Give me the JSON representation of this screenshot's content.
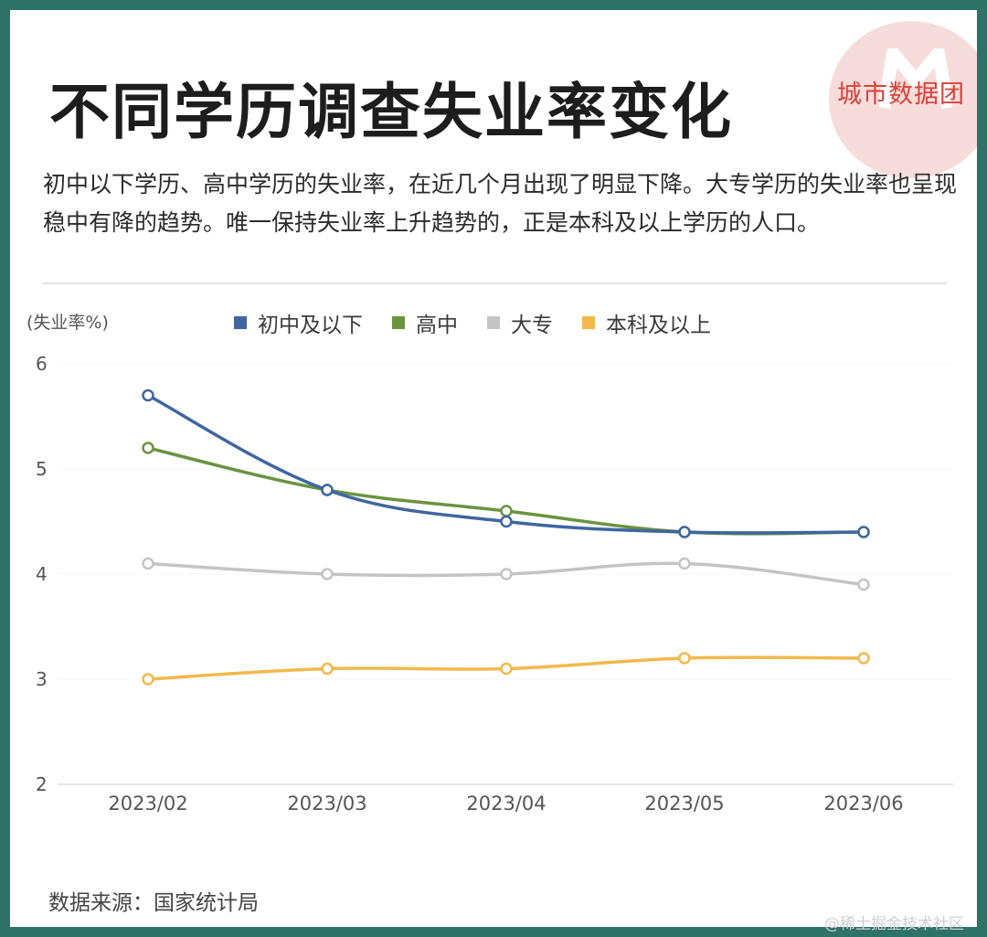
{
  "title": "不同学历调查失业率变化",
  "brand": "城市数据团",
  "description": "初中以下学历、高中学历的失业率，在近几个月出现了明显下降。大专学历的失业率也呈现稳中有降的趋势。唯一保持失业率上升趋势的，正是本科及以上学历的人口。",
  "source": "数据来源：国家统计局",
  "watermark": "@稀土掘金技术社区",
  "colors": {
    "border": "#2e7268",
    "series_junior": "#3f66a0",
    "series_high": "#6a9340",
    "series_college": "#c4c4c4",
    "series_bachelor": "#f2b94b",
    "brand": "#d8423a"
  },
  "chart_data": {
    "type": "line",
    "title": "不同学历调查失业率变化",
    "ylabel": "(失业率%)",
    "xlabel": "",
    "ylim": [
      2,
      6
    ],
    "yticks": [
      "6",
      "5",
      "4",
      "3",
      "2"
    ],
    "grid": true,
    "legend_position": "top",
    "categories": [
      "2023/02",
      "2023/03",
      "2023/04",
      "2023/05",
      "2023/06"
    ],
    "series": [
      {
        "name": "初中及以下",
        "color": "#3f66a0",
        "values": [
          5.7,
          4.8,
          4.5,
          4.4,
          4.4
        ]
      },
      {
        "name": "高中",
        "color": "#6a9340",
        "values": [
          5.2,
          4.8,
          4.6,
          4.4,
          4.4
        ]
      },
      {
        "name": "大专",
        "color": "#c4c4c4",
        "values": [
          4.1,
          4.0,
          4.0,
          4.1,
          3.9
        ]
      },
      {
        "name": "本科及以上",
        "color": "#f2b94b",
        "values": [
          3.0,
          3.1,
          3.1,
          3.2,
          3.2
        ]
      }
    ]
  }
}
